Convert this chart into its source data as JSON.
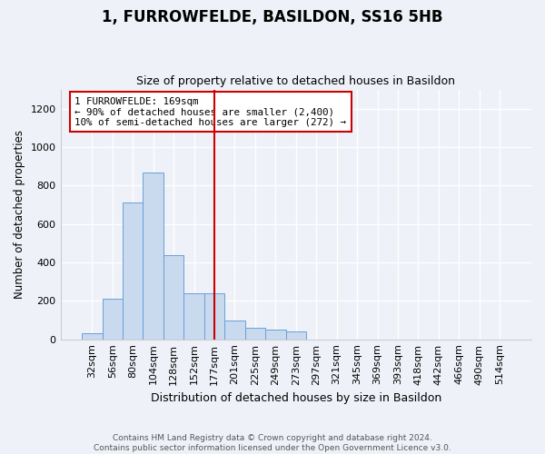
{
  "title": "1, FURROWFELDE, BASILDON, SS16 5HB",
  "subtitle": "Size of property relative to detached houses in Basildon",
  "xlabel": "Distribution of detached houses by size in Basildon",
  "ylabel": "Number of detached properties",
  "bar_categories": [
    "32sqm",
    "56sqm",
    "80sqm",
    "104sqm",
    "128sqm",
    "152sqm",
    "177sqm",
    "201sqm",
    "225sqm",
    "249sqm",
    "273sqm",
    "297sqm",
    "321sqm",
    "345sqm",
    "369sqm",
    "393sqm",
    "418sqm",
    "442sqm",
    "466sqm",
    "490sqm",
    "514sqm"
  ],
  "bar_values": [
    30,
    210,
    710,
    870,
    440,
    240,
    240,
    100,
    60,
    50,
    40,
    0,
    0,
    0,
    0,
    0,
    0,
    0,
    0,
    0,
    0
  ],
  "bar_color": "#c9d9ee",
  "bar_edge_color": "#6a9fd8",
  "vline_x": 6.0,
  "vline_color": "#cc0000",
  "annotation_text": "1 FURROWFELDE: 169sqm\n← 90% of detached houses are smaller (2,400)\n10% of semi-detached houses are larger (272) →",
  "annotation_box_color": "#ffffff",
  "annotation_box_edge": "#cc0000",
  "ylim": [
    0,
    1300
  ],
  "yticks": [
    0,
    200,
    400,
    600,
    800,
    1000,
    1200
  ],
  "footer_line1": "Contains HM Land Registry data © Crown copyright and database right 2024.",
  "footer_line2": "Contains public sector information licensed under the Open Government Licence v3.0.",
  "bg_color": "#eef2f8",
  "plot_bg_color": "#eef2f8"
}
